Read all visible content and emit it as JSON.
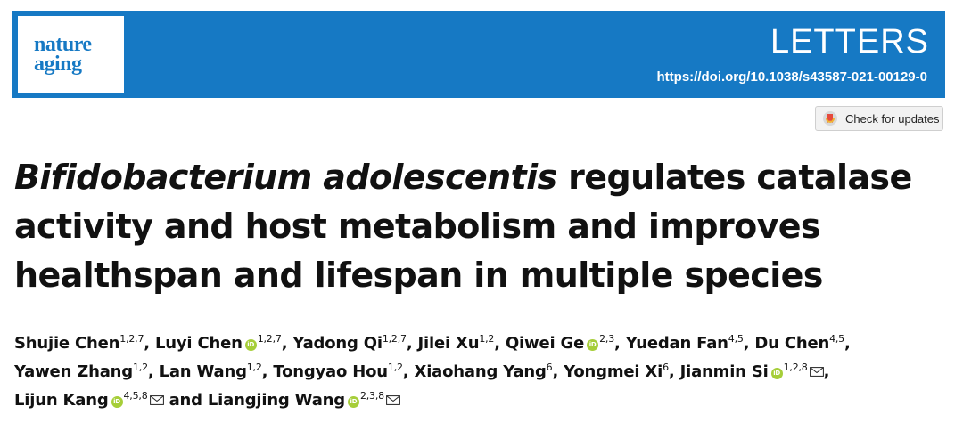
{
  "header": {
    "logo_line1": "nature",
    "logo_line2": "aging",
    "section": "LETTERS",
    "doi": "https://doi.org/10.1038/s43587-021-00129-0",
    "brand_color": "#1679c4"
  },
  "updates_button": {
    "label": "Check for updates"
  },
  "title": {
    "italic": "Bifidobacterium adolescentis",
    "rest_line1": " regulates catalase",
    "line2": "activity and host metabolism and improves",
    "line3": "healthspan and lifespan in multiple species"
  },
  "orcid_icon_text": "iD",
  "authors": [
    {
      "name": "Shujie Chen",
      "aff": "1,2,7",
      "orcid": false,
      "mail": false,
      "sep": ", "
    },
    {
      "name": "Luyi Chen",
      "aff": "1,2,7",
      "orcid": true,
      "mail": false,
      "sep": ", "
    },
    {
      "name": "Yadong Qi",
      "aff": "1,2,7",
      "orcid": false,
      "mail": false,
      "sep": ", "
    },
    {
      "name": "Jilei Xu",
      "aff": "1,2",
      "orcid": false,
      "mail": false,
      "sep": ", "
    },
    {
      "name": "Qiwei Ge",
      "aff": "2,3",
      "orcid": true,
      "mail": false,
      "sep": ", "
    },
    {
      "name": "Yuedan Fan",
      "aff": "4,5",
      "orcid": false,
      "mail": false,
      "sep": ", "
    },
    {
      "name": "Du Chen",
      "aff": "4,5",
      "orcid": false,
      "mail": false,
      "sep": ", "
    },
    {
      "name": "Yawen Zhang",
      "aff": "1,2",
      "orcid": false,
      "mail": false,
      "sep": ", "
    },
    {
      "name": "Lan Wang",
      "aff": "1,2",
      "orcid": false,
      "mail": false,
      "sep": ", "
    },
    {
      "name": "Tongyao Hou",
      "aff": "1,2",
      "orcid": false,
      "mail": false,
      "sep": ", "
    },
    {
      "name": "Xiaohang Yang",
      "aff": "6",
      "orcid": false,
      "mail": false,
      "sep": ", "
    },
    {
      "name": "Yongmei Xi",
      "aff": "6",
      "orcid": false,
      "mail": false,
      "sep": ", "
    },
    {
      "name": "Jianmin Si",
      "aff": "1,2,8",
      "orcid": true,
      "mail": true,
      "sep": ", "
    },
    {
      "name": "Lijun Kang",
      "aff": "4,5,8",
      "orcid": true,
      "mail": true,
      "sep": " and "
    },
    {
      "name": "Liangjing Wang",
      "aff": "2,3,8",
      "orcid": true,
      "mail": true,
      "sep": ""
    }
  ]
}
